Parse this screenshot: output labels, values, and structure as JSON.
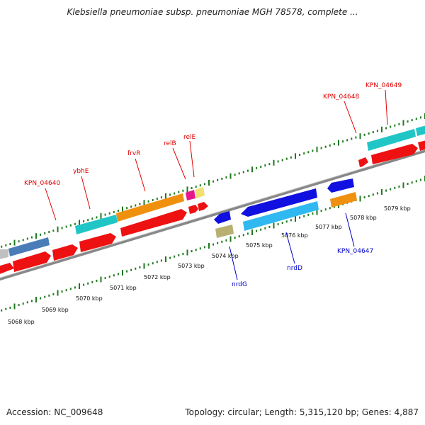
{
  "title": "Klebsiella pneumoniae subsp. pneumoniae MGH 78578, complete ...",
  "footer": {
    "accession": "Accession: NC_009648",
    "summary": "Topology: circular; Length: 5,315,120 bp; Genes: 4,887"
  },
  "ruler_labels": [
    "5068 kbp",
    "5069 kbp",
    "5070 kbp",
    "5071 kbp",
    "5072 kbp",
    "5073 kbp",
    "5074 kbp",
    "5075 kbp",
    "5076 kbp",
    "5077 kbp",
    "5078 kbp",
    "5079 kbp"
  ],
  "gene_labels_forward": [
    "KPN_04640",
    "ybhE",
    "frvR",
    "relB",
    "relE",
    "KPN_04648",
    "KPN_04649"
  ],
  "gene_labels_reverse": [
    "nrdG",
    "nrdD",
    "KPN_04647"
  ],
  "colors": {
    "forward_label": "#e00000",
    "reverse_label": "#0000c8",
    "tick": "#1f7a1f",
    "backbone": "#888888"
  }
}
